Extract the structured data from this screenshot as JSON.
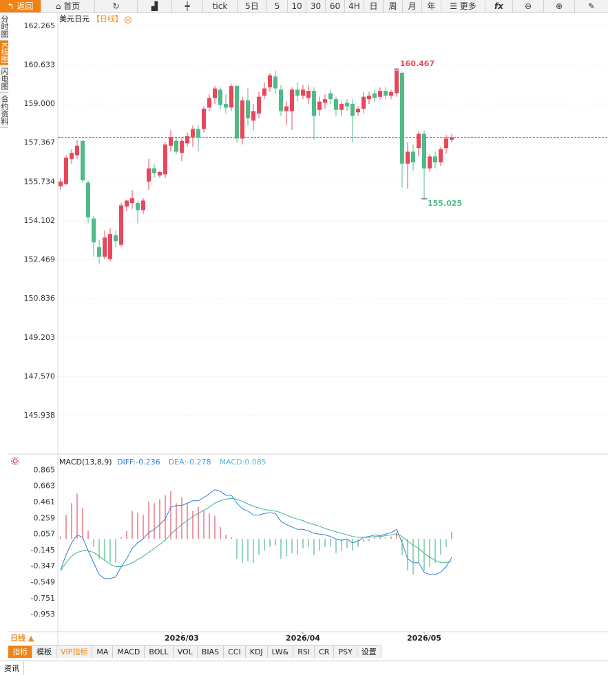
{
  "toolbar": {
    "back": "返回",
    "home": "首页",
    "buttons": [
      "tick",
      "5日",
      "5",
      "10",
      "30",
      "60",
      "4H",
      "日",
      "周",
      "月",
      "年"
    ],
    "more": "更多",
    "formula": "fx"
  },
  "side_tabs": [
    "分时图",
    "K线图",
    "闪电图",
    "合约资料"
  ],
  "chart_data": [
    {
      "type": "candlestick",
      "title": "美元日元",
      "period": "【日线】",
      "open": [
        155.55,
        155.65,
        156.7,
        156.85,
        157.45,
        155.7,
        154.2,
        153.0,
        152.6,
        152.5,
        153.5,
        153.1,
        154.7,
        154.85,
        154.85,
        154.55,
        155.75,
        156.3,
        156.0,
        156.05,
        157.25,
        157.45,
        156.95,
        157.35,
        157.6,
        157.95,
        157.95,
        158.85,
        159.25,
        159.6,
        159.0,
        158.85,
        159.75,
        157.55,
        159.15,
        158.3,
        158.6,
        159.35,
        159.7,
        160.15,
        159.6,
        158.7,
        158.7,
        159.6,
        159.35,
        159.25,
        159.55,
        158.75,
        159.05,
        159.45,
        159.2,
        158.75,
        159.05,
        159.0,
        158.65,
        158.8,
        159.2,
        159.45,
        159.3,
        159.55,
        159.35,
        159.45,
        160.3,
        156.5,
        157.0,
        157.15,
        157.75,
        156.3,
        156.8,
        156.55,
        157.15,
        157.5
      ],
      "high": [
        155.9,
        156.85,
        157.1,
        157.5,
        157.5,
        155.8,
        154.3,
        153.3,
        153.7,
        153.8,
        153.7,
        154.85,
        155.0,
        155.4,
        154.95,
        155.05,
        156.7,
        156.5,
        156.2,
        157.4,
        157.9,
        157.6,
        157.6,
        157.8,
        158.1,
        158.1,
        158.9,
        159.4,
        159.75,
        159.7,
        159.4,
        159.85,
        159.8,
        159.3,
        159.65,
        159.0,
        159.5,
        159.9,
        160.3,
        160.4,
        159.8,
        159.1,
        159.7,
        159.9,
        159.8,
        159.8,
        159.7,
        159.3,
        159.4,
        159.6,
        159.3,
        159.1,
        159.2,
        159.2,
        158.9,
        159.5,
        159.5,
        159.6,
        159.7,
        159.7,
        159.6,
        160.467,
        160.35,
        157.4,
        157.3,
        157.85,
        157.9,
        156.9,
        157.0,
        157.2,
        157.7,
        157.75
      ],
      "low": [
        155.4,
        155.6,
        156.5,
        156.7,
        155.7,
        154.0,
        152.6,
        152.3,
        152.5,
        152.4,
        153.0,
        153.0,
        154.5,
        154.6,
        154.0,
        154.4,
        155.4,
        155.9,
        155.9,
        155.9,
        157.0,
        156.9,
        156.6,
        157.2,
        157.2,
        157.0,
        157.8,
        158.7,
        159.0,
        158.8,
        158.6,
        158.7,
        157.4,
        157.3,
        158.1,
        157.9,
        158.4,
        159.2,
        159.5,
        159.4,
        158.5,
        158.1,
        157.9,
        159.1,
        159.2,
        159.0,
        157.5,
        158.5,
        158.8,
        159.0,
        158.5,
        158.5,
        158.7,
        157.4,
        158.5,
        158.6,
        159.0,
        159.1,
        159.2,
        159.2,
        159.2,
        159.3,
        155.5,
        155.45,
        156.2,
        156.8,
        155.025,
        156.15,
        156.3,
        156.4,
        156.9,
        157.4
      ],
      "close": [
        155.75,
        156.75,
        156.95,
        157.25,
        155.8,
        154.25,
        153.2,
        152.6,
        153.4,
        153.55,
        153.25,
        154.75,
        154.95,
        155.05,
        154.55,
        154.95,
        156.3,
        156.1,
        156.15,
        157.3,
        157.6,
        157.0,
        157.45,
        157.65,
        157.95,
        157.6,
        158.8,
        159.25,
        159.65,
        158.95,
        158.85,
        159.75,
        157.55,
        159.15,
        158.4,
        158.7,
        159.3,
        159.65,
        160.2,
        159.65,
        158.7,
        158.9,
        159.6,
        159.35,
        159.6,
        159.55,
        158.5,
        159.1,
        159.2,
        159.2,
        158.75,
        159.0,
        158.9,
        158.5,
        158.8,
        159.3,
        159.35,
        159.25,
        159.55,
        159.35,
        159.5,
        160.4,
        156.5,
        157.0,
        156.55,
        157.75,
        156.3,
        156.8,
        156.55,
        157.1,
        157.55,
        157.6
      ],
      "up_color": "#e8475c",
      "down_color": "#4fbb88",
      "last_price_color": "#2f6fb5",
      "ylim": [
        144.47,
        162.78
      ],
      "yticks": [
        162.265,
        160.633,
        {
          "value": 159,
          "label": "159.000"
        },
        157.367,
        155.734,
        154.102,
        152.469,
        150.836,
        149.203,
        {
          "value": 147.57,
          "label": "147.570"
        },
        145.938
      ],
      "xticks": [
        {
          "value": 22,
          "label": "2026/03"
        },
        {
          "value": 44,
          "label": "2026/04"
        },
        {
          "value": 66,
          "label": "2026/05"
        }
      ],
      "grid": true
    },
    {
      "type": "macd",
      "title": "MACD(13,8,9)",
      "series": [
        {
          "name": "DIFF:-0.236",
          "color": "#2f7fd8",
          "values": [
            -0.39,
            -0.2,
            -0.05,
            0.05,
            0.02,
            -0.15,
            -0.3,
            -0.45,
            -0.5,
            -0.5,
            -0.48,
            -0.35,
            -0.25,
            -0.12,
            -0.05,
            0.0,
            0.08,
            0.12,
            0.18,
            0.25,
            0.4,
            0.42,
            0.42,
            0.45,
            0.48,
            0.48,
            0.52,
            0.57,
            0.62,
            0.6,
            0.55,
            0.55,
            0.45,
            0.38,
            0.35,
            0.3,
            0.3,
            0.32,
            0.33,
            0.32,
            0.22,
            0.18,
            0.15,
            0.12,
            0.12,
            0.1,
            0.07,
            0.06,
            0.05,
            0.03,
            0.0,
            -0.02,
            0.0,
            -0.05,
            -0.03,
            0.02,
            0.03,
            0.05,
            0.04,
            0.06,
            0.08,
            0.12,
            -0.05,
            -0.25,
            -0.3,
            -0.3,
            -0.42,
            -0.45,
            -0.45,
            -0.42,
            -0.35,
            -0.236
          ]
        },
        {
          "name": "DEA:-0.278",
          "color": "#3cb589",
          "text_color": "#4a9ee0",
          "values": [
            -0.4,
            -0.3,
            -0.22,
            -0.17,
            -0.15,
            -0.15,
            -0.17,
            -0.22,
            -0.27,
            -0.32,
            -0.35,
            -0.35,
            -0.33,
            -0.3,
            -0.26,
            -0.22,
            -0.17,
            -0.12,
            -0.07,
            -0.02,
            0.06,
            0.12,
            0.18,
            0.23,
            0.28,
            0.32,
            0.36,
            0.4,
            0.45,
            0.48,
            0.5,
            0.51,
            0.5,
            0.47,
            0.44,
            0.41,
            0.39,
            0.37,
            0.36,
            0.35,
            0.33,
            0.3,
            0.27,
            0.25,
            0.23,
            0.2,
            0.18,
            0.16,
            0.13,
            0.11,
            0.09,
            0.07,
            0.05,
            0.03,
            0.02,
            0.02,
            0.02,
            0.03,
            0.03,
            0.04,
            0.05,
            0.06,
            0.03,
            -0.03,
            -0.08,
            -0.12,
            -0.18,
            -0.23,
            -0.27,
            -0.3,
            -0.3,
            -0.278
          ]
        },
        {
          "name": "MACD:0.085",
          "color": "#5cb8de",
          "up_color": "#e0566b",
          "down_color": "#4fb98a",
          "values": [
            0.03,
            0.3,
            0.45,
            0.57,
            0.39,
            0.1,
            -0.1,
            -0.25,
            -0.28,
            -0.3,
            -0.3,
            0.02,
            0.1,
            0.35,
            0.33,
            0.3,
            0.47,
            0.45,
            0.5,
            0.55,
            0.6,
            0.45,
            0.52,
            0.45,
            0.35,
            0.4,
            0.36,
            0.32,
            0.29,
            0.15,
            0.05,
            0.02,
            -0.25,
            -0.3,
            -0.28,
            -0.3,
            -0.2,
            -0.15,
            -0.1,
            -0.08,
            -0.25,
            -0.22,
            -0.18,
            -0.2,
            -0.12,
            -0.1,
            -0.2,
            -0.15,
            -0.1,
            -0.1,
            -0.18,
            -0.15,
            -0.12,
            -0.15,
            -0.1,
            -0.04,
            -0.03,
            0.02,
            0.03,
            0.02,
            0.03,
            0.08,
            -0.2,
            -0.4,
            -0.45,
            -0.3,
            -0.4,
            -0.35,
            -0.3,
            -0.2,
            -0.1,
            0.085
          ]
        }
      ],
      "ylim": [
        -1.16,
        1.05
      ],
      "yticks": [
        0.865,
        0.663,
        0.461,
        0.259,
        0.057,
        -0.145,
        -0.347,
        -0.549,
        -0.751,
        -0.953
      ]
    }
  ],
  "period_selector": "日线 ▲",
  "indicator_tabs": [
    "指标",
    "模板",
    "VIP指标",
    "MA",
    "MACD",
    "BOLL",
    "VOL",
    "BIAS",
    "CCI",
    "KDJ",
    "LW&",
    "RSI",
    "CR",
    "PSY",
    "设置"
  ],
  "footer_tab": "资讯"
}
